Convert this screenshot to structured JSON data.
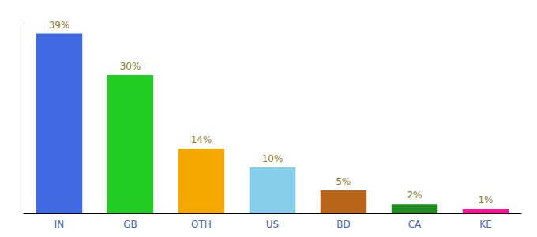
{
  "chart_data": {
    "type": "bar",
    "categories": [
      "IN",
      "GB",
      "OTH",
      "US",
      "BD",
      "CA",
      "KE"
    ],
    "values": [
      39,
      30,
      14,
      10,
      5,
      2,
      1
    ],
    "value_labels": [
      "39%",
      "30%",
      "14%",
      "10%",
      "5%",
      "2%",
      "1%"
    ],
    "colors": [
      "#4169e1",
      "#22cc22",
      "#f5a800",
      "#87ceeb",
      "#b8651a",
      "#228b22",
      "#ff1493"
    ],
    "ylim": [
      0,
      42
    ],
    "data_labels": true,
    "tick_labels": "x",
    "grid": false
  }
}
